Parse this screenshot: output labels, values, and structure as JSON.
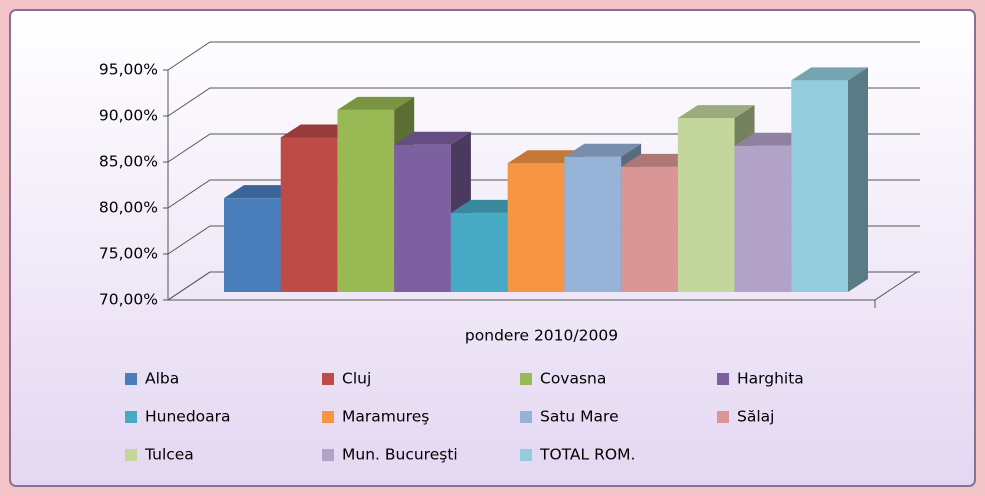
{
  "chart_data": {
    "type": "bar3d",
    "categories": [
      "pondere 2010/2009"
    ],
    "series": [
      {
        "name": "Alba",
        "color": "#4a7ebb",
        "values": [
          80.2
        ]
      },
      {
        "name": "Cluj",
        "color": "#be4b48",
        "values": [
          86.8
        ]
      },
      {
        "name": "Covasna",
        "color": "#98b954",
        "values": [
          89.8
        ]
      },
      {
        "name": "Harghita",
        "color": "#7d60a0",
        "values": [
          86.0
        ]
      },
      {
        "name": "Hunedoara",
        "color": "#46aac5",
        "values": [
          78.6
        ]
      },
      {
        "name": "Maramureş",
        "color": "#f69544",
        "values": [
          84.0
        ]
      },
      {
        "name": "Satu Mare",
        "color": "#95b3d7",
        "values": [
          84.7
        ]
      },
      {
        "name": "Sălaj",
        "color": "#d99694",
        "values": [
          83.6
        ]
      },
      {
        "name": "Tulcea",
        "color": "#c3d69b",
        "values": [
          88.9
        ]
      },
      {
        "name": "Mun. Bucureşti",
        "color": "#b3a2c7",
        "values": [
          85.9
        ]
      },
      {
        "name": "TOTAL ROM.",
        "color": "#93cddd",
        "values": [
          93.0
        ]
      }
    ],
    "ylim": [
      70,
      95
    ],
    "yticks": [
      {
        "value": 70,
        "label": "70,00%"
      },
      {
        "value": 75,
        "label": "75,00%"
      },
      {
        "value": 80,
        "label": "80,00%"
      },
      {
        "value": 85,
        "label": "85,00%"
      },
      {
        "value": 90,
        "label": "90,00%"
      },
      {
        "value": 95,
        "label": "95,00%"
      }
    ],
    "grid": true,
    "legend": "bottom"
  }
}
